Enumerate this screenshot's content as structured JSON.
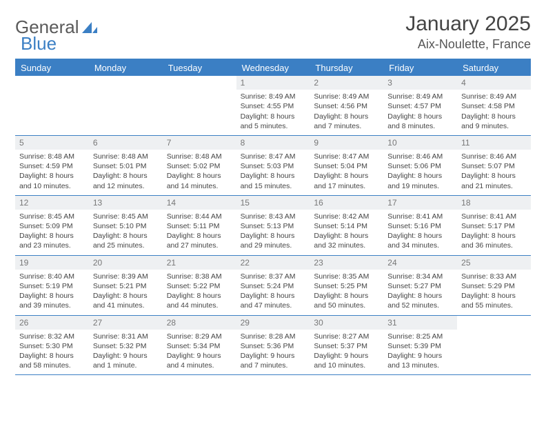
{
  "brand": {
    "part1": "General",
    "part2": "Blue"
  },
  "title": "January 2025",
  "location": "Aix-Noulette, France",
  "day_names": [
    "Sunday",
    "Monday",
    "Tuesday",
    "Wednesday",
    "Thursday",
    "Friday",
    "Saturday"
  ],
  "colors": {
    "accent": "#3b7fc4",
    "header_bg": "#3b7fc4",
    "header_text": "#ffffff",
    "daynum_bg": "#eef0f2",
    "text": "#444444",
    "background": "#ffffff"
  },
  "layout": {
    "columns": 7,
    "rows": 5
  },
  "weeks": [
    [
      {
        "blank": true
      },
      {
        "blank": true
      },
      {
        "blank": true
      },
      {
        "day": "1",
        "sunrise": "Sunrise: 8:49 AM",
        "sunset": "Sunset: 4:55 PM",
        "daylight1": "Daylight: 8 hours",
        "daylight2": "and 5 minutes."
      },
      {
        "day": "2",
        "sunrise": "Sunrise: 8:49 AM",
        "sunset": "Sunset: 4:56 PM",
        "daylight1": "Daylight: 8 hours",
        "daylight2": "and 7 minutes."
      },
      {
        "day": "3",
        "sunrise": "Sunrise: 8:49 AM",
        "sunset": "Sunset: 4:57 PM",
        "daylight1": "Daylight: 8 hours",
        "daylight2": "and 8 minutes."
      },
      {
        "day": "4",
        "sunrise": "Sunrise: 8:49 AM",
        "sunset": "Sunset: 4:58 PM",
        "daylight1": "Daylight: 8 hours",
        "daylight2": "and 9 minutes."
      }
    ],
    [
      {
        "day": "5",
        "sunrise": "Sunrise: 8:48 AM",
        "sunset": "Sunset: 4:59 PM",
        "daylight1": "Daylight: 8 hours",
        "daylight2": "and 10 minutes."
      },
      {
        "day": "6",
        "sunrise": "Sunrise: 8:48 AM",
        "sunset": "Sunset: 5:01 PM",
        "daylight1": "Daylight: 8 hours",
        "daylight2": "and 12 minutes."
      },
      {
        "day": "7",
        "sunrise": "Sunrise: 8:48 AM",
        "sunset": "Sunset: 5:02 PM",
        "daylight1": "Daylight: 8 hours",
        "daylight2": "and 14 minutes."
      },
      {
        "day": "8",
        "sunrise": "Sunrise: 8:47 AM",
        "sunset": "Sunset: 5:03 PM",
        "daylight1": "Daylight: 8 hours",
        "daylight2": "and 15 minutes."
      },
      {
        "day": "9",
        "sunrise": "Sunrise: 8:47 AM",
        "sunset": "Sunset: 5:04 PM",
        "daylight1": "Daylight: 8 hours",
        "daylight2": "and 17 minutes."
      },
      {
        "day": "10",
        "sunrise": "Sunrise: 8:46 AM",
        "sunset": "Sunset: 5:06 PM",
        "daylight1": "Daylight: 8 hours",
        "daylight2": "and 19 minutes."
      },
      {
        "day": "11",
        "sunrise": "Sunrise: 8:46 AM",
        "sunset": "Sunset: 5:07 PM",
        "daylight1": "Daylight: 8 hours",
        "daylight2": "and 21 minutes."
      }
    ],
    [
      {
        "day": "12",
        "sunrise": "Sunrise: 8:45 AM",
        "sunset": "Sunset: 5:09 PM",
        "daylight1": "Daylight: 8 hours",
        "daylight2": "and 23 minutes."
      },
      {
        "day": "13",
        "sunrise": "Sunrise: 8:45 AM",
        "sunset": "Sunset: 5:10 PM",
        "daylight1": "Daylight: 8 hours",
        "daylight2": "and 25 minutes."
      },
      {
        "day": "14",
        "sunrise": "Sunrise: 8:44 AM",
        "sunset": "Sunset: 5:11 PM",
        "daylight1": "Daylight: 8 hours",
        "daylight2": "and 27 minutes."
      },
      {
        "day": "15",
        "sunrise": "Sunrise: 8:43 AM",
        "sunset": "Sunset: 5:13 PM",
        "daylight1": "Daylight: 8 hours",
        "daylight2": "and 29 minutes."
      },
      {
        "day": "16",
        "sunrise": "Sunrise: 8:42 AM",
        "sunset": "Sunset: 5:14 PM",
        "daylight1": "Daylight: 8 hours",
        "daylight2": "and 32 minutes."
      },
      {
        "day": "17",
        "sunrise": "Sunrise: 8:41 AM",
        "sunset": "Sunset: 5:16 PM",
        "daylight1": "Daylight: 8 hours",
        "daylight2": "and 34 minutes."
      },
      {
        "day": "18",
        "sunrise": "Sunrise: 8:41 AM",
        "sunset": "Sunset: 5:17 PM",
        "daylight1": "Daylight: 8 hours",
        "daylight2": "and 36 minutes."
      }
    ],
    [
      {
        "day": "19",
        "sunrise": "Sunrise: 8:40 AM",
        "sunset": "Sunset: 5:19 PM",
        "daylight1": "Daylight: 8 hours",
        "daylight2": "and 39 minutes."
      },
      {
        "day": "20",
        "sunrise": "Sunrise: 8:39 AM",
        "sunset": "Sunset: 5:21 PM",
        "daylight1": "Daylight: 8 hours",
        "daylight2": "and 41 minutes."
      },
      {
        "day": "21",
        "sunrise": "Sunrise: 8:38 AM",
        "sunset": "Sunset: 5:22 PM",
        "daylight1": "Daylight: 8 hours",
        "daylight2": "and 44 minutes."
      },
      {
        "day": "22",
        "sunrise": "Sunrise: 8:37 AM",
        "sunset": "Sunset: 5:24 PM",
        "daylight1": "Daylight: 8 hours",
        "daylight2": "and 47 minutes."
      },
      {
        "day": "23",
        "sunrise": "Sunrise: 8:35 AM",
        "sunset": "Sunset: 5:25 PM",
        "daylight1": "Daylight: 8 hours",
        "daylight2": "and 50 minutes."
      },
      {
        "day": "24",
        "sunrise": "Sunrise: 8:34 AM",
        "sunset": "Sunset: 5:27 PM",
        "daylight1": "Daylight: 8 hours",
        "daylight2": "and 52 minutes."
      },
      {
        "day": "25",
        "sunrise": "Sunrise: 8:33 AM",
        "sunset": "Sunset: 5:29 PM",
        "daylight1": "Daylight: 8 hours",
        "daylight2": "and 55 minutes."
      }
    ],
    [
      {
        "day": "26",
        "sunrise": "Sunrise: 8:32 AM",
        "sunset": "Sunset: 5:30 PM",
        "daylight1": "Daylight: 8 hours",
        "daylight2": "and 58 minutes."
      },
      {
        "day": "27",
        "sunrise": "Sunrise: 8:31 AM",
        "sunset": "Sunset: 5:32 PM",
        "daylight1": "Daylight: 9 hours",
        "daylight2": "and 1 minute."
      },
      {
        "day": "28",
        "sunrise": "Sunrise: 8:29 AM",
        "sunset": "Sunset: 5:34 PM",
        "daylight1": "Daylight: 9 hours",
        "daylight2": "and 4 minutes."
      },
      {
        "day": "29",
        "sunrise": "Sunrise: 8:28 AM",
        "sunset": "Sunset: 5:36 PM",
        "daylight1": "Daylight: 9 hours",
        "daylight2": "and 7 minutes."
      },
      {
        "day": "30",
        "sunrise": "Sunrise: 8:27 AM",
        "sunset": "Sunset: 5:37 PM",
        "daylight1": "Daylight: 9 hours",
        "daylight2": "and 10 minutes."
      },
      {
        "day": "31",
        "sunrise": "Sunrise: 8:25 AM",
        "sunset": "Sunset: 5:39 PM",
        "daylight1": "Daylight: 9 hours",
        "daylight2": "and 13 minutes."
      },
      {
        "blank": true
      }
    ]
  ]
}
